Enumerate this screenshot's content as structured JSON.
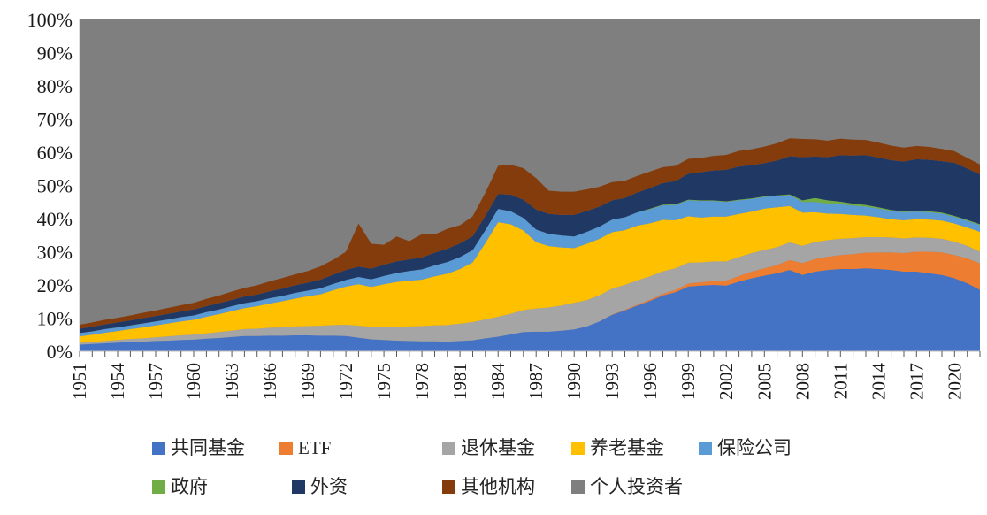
{
  "chart_data": {
    "type": "area",
    "stacked": true,
    "title": "",
    "unit": "%",
    "ylim": [
      0,
      100
    ],
    "grid": false,
    "legend_position": "bottom",
    "y_tick_labels": [
      "0%",
      "10%",
      "20%",
      "30%",
      "40%",
      "50%",
      "60%",
      "70%",
      "80%",
      "90%",
      "100%"
    ],
    "x_tick_labels": [
      "1951",
      "1954",
      "1957",
      "1960",
      "1963",
      "1966",
      "1969",
      "1972",
      "1975",
      "1978",
      "1981",
      "1984",
      "1987",
      "1990",
      "1993",
      "1996",
      "1999",
      "2002",
      "2005",
      "2008",
      "2011",
      "2014",
      "2017",
      "2020"
    ],
    "x": [
      1951,
      1952,
      1953,
      1954,
      1955,
      1956,
      1957,
      1958,
      1959,
      1960,
      1961,
      1962,
      1963,
      1964,
      1965,
      1966,
      1967,
      1968,
      1969,
      1970,
      1971,
      1972,
      1973,
      1974,
      1975,
      1976,
      1977,
      1978,
      1979,
      1980,
      1981,
      1982,
      1983,
      1984,
      1985,
      1986,
      1987,
      1988,
      1989,
      1990,
      1991,
      1992,
      1993,
      1994,
      1995,
      1996,
      1997,
      1998,
      1999,
      2000,
      2001,
      2002,
      2003,
      2004,
      2005,
      2006,
      2007,
      2008,
      2009,
      2010,
      2011,
      2012,
      2013,
      2014,
      2015,
      2016,
      2017,
      2018,
      2019,
      2020,
      2021,
      2022
    ],
    "series": [
      {
        "name": "共同基金",
        "slug": "mutual-funds",
        "color": "#4472C4",
        "values": [
          2.0,
          2.2,
          2.4,
          2.6,
          2.8,
          2.9,
          3.1,
          3.2,
          3.4,
          3.5,
          3.8,
          4.0,
          4.3,
          4.6,
          4.6,
          4.7,
          4.7,
          4.8,
          4.8,
          4.7,
          4.7,
          4.6,
          4.1,
          3.6,
          3.4,
          3.2,
          3.1,
          3.0,
          3.0,
          2.9,
          3.1,
          3.3,
          3.9,
          4.4,
          5.1,
          5.8,
          5.9,
          5.9,
          6.2,
          6.6,
          7.5,
          9.0,
          11.0,
          12.3,
          13.8,
          15.2,
          16.8,
          17.8,
          19.5,
          19.8,
          20.0,
          19.8,
          21.0,
          22.0,
          22.8,
          23.5,
          24.5,
          23.0,
          24.0,
          24.5,
          24.8,
          24.8,
          25.0,
          24.8,
          24.5,
          24.0,
          24.0,
          23.5,
          23.0,
          22.0,
          20.5,
          18.5
        ]
      },
      {
        "name": "ETF",
        "slug": "etf",
        "color": "#ED7D31",
        "values": [
          0,
          0,
          0,
          0,
          0,
          0,
          0,
          0,
          0,
          0,
          0,
          0,
          0,
          0,
          0,
          0,
          0,
          0,
          0,
          0,
          0,
          0,
          0,
          0,
          0,
          0,
          0,
          0,
          0,
          0,
          0,
          0,
          0,
          0,
          0,
          0,
          0,
          0,
          0,
          0,
          0,
          0,
          0.1,
          0.2,
          0.3,
          0.4,
          0.5,
          0.7,
          0.9,
          1.0,
          1.2,
          1.5,
          1.7,
          2.0,
          2.2,
          2.5,
          3.0,
          3.6,
          3.8,
          4.0,
          4.2,
          4.5,
          4.7,
          5.0,
          5.3,
          5.6,
          6.0,
          6.5,
          6.8,
          7.0,
          7.5,
          8.0
        ]
      },
      {
        "name": "退休基金",
        "slug": "retirement-funds",
        "color": "#A5A5A5",
        "values": [
          0.5,
          0.6,
          0.7,
          0.8,
          0.9,
          1.0,
          1.1,
          1.3,
          1.4,
          1.5,
          1.6,
          1.8,
          1.9,
          2.1,
          2.2,
          2.4,
          2.5,
          2.7,
          2.8,
          3.0,
          3.2,
          3.4,
          3.6,
          3.8,
          4.0,
          4.2,
          4.4,
          4.6,
          4.8,
          5.0,
          5.2,
          5.5,
          5.7,
          6.0,
          6.2,
          6.6,
          7.0,
          7.3,
          7.6,
          8.0,
          7.9,
          7.9,
          7.8,
          7.5,
          7.3,
          7.0,
          6.8,
          6.5,
          6.3,
          6.0,
          5.9,
          5.8,
          5.7,
          5.6,
          5.5,
          5.4,
          5.3,
          5.2,
          5.1,
          5.0,
          4.9,
          4.8,
          4.7,
          4.6,
          4.5,
          4.4,
          4.3,
          4.2,
          4.1,
          4.0,
          3.8,
          3.5
        ]
      },
      {
        "name": "养老基金",
        "slug": "pension-funds",
        "color": "#FFC000",
        "values": [
          2.0,
          2.2,
          2.5,
          2.7,
          3.0,
          3.3,
          3.6,
          3.9,
          4.2,
          4.5,
          5.0,
          5.4,
          5.9,
          6.3,
          6.8,
          7.3,
          7.9,
          8.4,
          9.0,
          9.5,
          10.5,
          11.5,
          12.5,
          12.0,
          12.8,
          13.5,
          13.8,
          14.0,
          14.8,
          15.5,
          16.5,
          18.0,
          23.0,
          28.5,
          27.0,
          24.0,
          20.0,
          18.5,
          17.5,
          16.5,
          17.0,
          17.0,
          17.0,
          16.5,
          16.5,
          16.0,
          15.5,
          14.5,
          14.0,
          13.5,
          13.5,
          13.5,
          13.0,
          12.5,
          12.5,
          12.0,
          11.0,
          10.0,
          9.0,
          8.0,
          7.5,
          7.0,
          6.5,
          6.0,
          5.5,
          5.5,
          5.5,
          5.5,
          5.5,
          5.5,
          5.5,
          6.0
        ]
      },
      {
        "name": "保险公司",
        "slug": "insurance-companies",
        "color": "#5B9BD5",
        "values": [
          1.0,
          1.0,
          1.1,
          1.1,
          1.1,
          1.2,
          1.2,
          1.2,
          1.3,
          1.3,
          1.4,
          1.4,
          1.5,
          1.5,
          1.5,
          1.6,
          1.6,
          1.7,
          1.7,
          1.8,
          1.9,
          2.0,
          2.2,
          2.3,
          2.5,
          2.7,
          2.9,
          3.1,
          3.3,
          3.5,
          3.6,
          3.7,
          3.9,
          4.0,
          3.9,
          3.8,
          3.8,
          3.7,
          3.6,
          3.5,
          3.6,
          3.7,
          3.8,
          3.9,
          4.0,
          4.2,
          4.4,
          4.6,
          4.8,
          5.0,
          4.7,
          4.4,
          4.1,
          3.8,
          3.5,
          3.4,
          3.3,
          3.2,
          3.1,
          3.0,
          2.9,
          2.8,
          2.7,
          2.6,
          2.5,
          2.4,
          2.3,
          2.2,
          2.1,
          2.0,
          2.0,
          2.0
        ]
      },
      {
        "name": "政府",
        "slug": "government",
        "color": "#70AD47",
        "values": [
          0,
          0,
          0,
          0,
          0,
          0,
          0,
          0,
          0,
          0,
          0,
          0,
          0,
          0,
          0,
          0,
          0,
          0,
          0,
          0,
          0,
          0,
          0,
          0,
          0,
          0,
          0,
          0,
          0,
          0,
          0,
          0,
          0,
          0,
          0,
          0,
          0,
          0,
          0,
          0,
          0,
          0,
          0,
          0,
          0,
          0.2,
          0.2,
          0.2,
          0.2,
          0.2,
          0.2,
          0.2,
          0.2,
          0.2,
          0.2,
          0.2,
          0.2,
          0.5,
          1.2,
          1.0,
          0.8,
          0.6,
          0.5,
          0.4,
          0.3,
          0.3,
          0.3,
          0.3,
          0.3,
          0.3,
          0.3,
          0.3
        ]
      },
      {
        "name": "外资",
        "slug": "foreign-investors",
        "color": "#1F3864",
        "values": [
          1.3,
          1.4,
          1.4,
          1.5,
          1.5,
          1.6,
          1.6,
          1.7,
          1.7,
          1.8,
          1.8,
          1.9,
          1.9,
          2.0,
          2.0,
          2.1,
          2.2,
          2.3,
          2.4,
          2.6,
          2.8,
          3.0,
          3.1,
          3.2,
          3.4,
          3.5,
          3.5,
          3.6,
          3.8,
          4.0,
          4.1,
          4.2,
          4.3,
          4.5,
          5.0,
          5.5,
          6.0,
          6.0,
          6.2,
          6.5,
          6.3,
          6.0,
          5.8,
          5.8,
          6.0,
          6.2,
          6.5,
          7.0,
          7.8,
          8.5,
          9.0,
          9.5,
          10.0,
          10.0,
          10.0,
          10.5,
          11.5,
          13.0,
          12.5,
          13.0,
          14.0,
          14.5,
          15.0,
          15.0,
          15.0,
          15.0,
          15.5,
          15.5,
          15.5,
          16.0,
          15.5,
          15.0
        ]
      },
      {
        "name": "其他机构",
        "slug": "other-institutions",
        "color": "#843C0C",
        "values": [
          1.2,
          1.3,
          1.4,
          1.4,
          1.5,
          1.6,
          1.7,
          1.8,
          1.9,
          2.0,
          2.2,
          2.3,
          2.5,
          2.6,
          2.8,
          3.0,
          3.2,
          3.3,
          3.5,
          4.0,
          4.5,
          5.5,
          13.0,
          7.5,
          6.0,
          7.5,
          5.5,
          7.0,
          5.5,
          6.0,
          5.5,
          6.0,
          7.0,
          8.5,
          9.0,
          9.5,
          9.5,
          7.0,
          7.0,
          7.0,
          6.5,
          6.0,
          5.5,
          5.2,
          5.0,
          5.0,
          4.8,
          4.6,
          4.5,
          4.3,
          4.4,
          4.5,
          4.7,
          4.8,
          5.0,
          5.2,
          5.4,
          5.5,
          5.2,
          5.0,
          5.0,
          4.8,
          4.6,
          4.5,
          4.4,
          4.2,
          4.0,
          3.9,
          3.7,
          3.5,
          3.2,
          3.0
        ]
      },
      {
        "name": "个人投资者",
        "slug": "individual-investors",
        "color": "#7F7F7F",
        "remainder_to_100": true
      }
    ],
    "legend_rows": [
      [
        0,
        1,
        2,
        3,
        4
      ],
      [
        5,
        6,
        7,
        8
      ]
    ]
  }
}
